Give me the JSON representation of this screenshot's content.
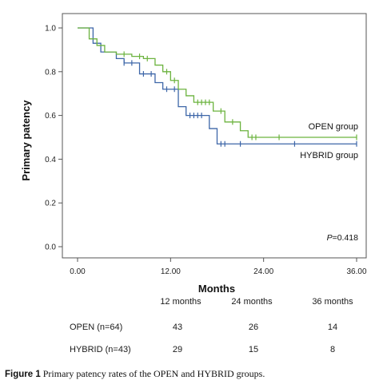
{
  "chart_data": {
    "type": "line",
    "ylabel": "Primary patency",
    "xlabel": "Months",
    "xlim": [
      0,
      36
    ],
    "ylim": [
      0,
      1
    ],
    "x_ticks": [
      "0.00",
      "12.00",
      "24.00",
      "36.00"
    ],
    "y_ticks": [
      "0.0",
      "0.2",
      "0.4",
      "0.6",
      "0.8",
      "1.0"
    ],
    "grid": false,
    "annotation": {
      "italic": "P",
      "rest": "=0.418"
    },
    "series": [
      {
        "name": "OPEN group",
        "color": "#6cb33f",
        "steps": [
          [
            0,
            1.0
          ],
          [
            1.5,
            0.95
          ],
          [
            2.5,
            0.92
          ],
          [
            3.5,
            0.89
          ],
          [
            5,
            0.88
          ],
          [
            7,
            0.87
          ],
          [
            8.5,
            0.86
          ],
          [
            10,
            0.83
          ],
          [
            11,
            0.8
          ],
          [
            12,
            0.76
          ],
          [
            13,
            0.72
          ],
          [
            14,
            0.69
          ],
          [
            15,
            0.66
          ],
          [
            17.5,
            0.62
          ],
          [
            19,
            0.57
          ],
          [
            21,
            0.53
          ],
          [
            22,
            0.5
          ],
          [
            36,
            0.5
          ]
        ],
        "censored": [
          [
            6,
            0.88
          ],
          [
            8,
            0.87
          ],
          [
            9,
            0.86
          ],
          [
            11.5,
            0.8
          ],
          [
            12.5,
            0.76
          ],
          [
            15.5,
            0.66
          ],
          [
            16,
            0.66
          ],
          [
            16.5,
            0.66
          ],
          [
            17,
            0.66
          ],
          [
            18.5,
            0.62
          ],
          [
            20,
            0.57
          ],
          [
            22.5,
            0.5
          ],
          [
            23,
            0.5
          ],
          [
            26,
            0.5
          ],
          [
            36,
            0.5
          ]
        ]
      },
      {
        "name": "HYBRID group",
        "color": "#3d66a8",
        "steps": [
          [
            0,
            1.0
          ],
          [
            2,
            0.93
          ],
          [
            3,
            0.89
          ],
          [
            5,
            0.86
          ],
          [
            6,
            0.84
          ],
          [
            8,
            0.79
          ],
          [
            10,
            0.75
          ],
          [
            11,
            0.72
          ],
          [
            13,
            0.64
          ],
          [
            14,
            0.6
          ],
          [
            17,
            0.54
          ],
          [
            18,
            0.47
          ],
          [
            36,
            0.47
          ]
        ],
        "censored": [
          [
            6,
            0.84
          ],
          [
            7,
            0.84
          ],
          [
            8.5,
            0.79
          ],
          [
            9.5,
            0.79
          ],
          [
            11.5,
            0.72
          ],
          [
            12.5,
            0.72
          ],
          [
            14.5,
            0.6
          ],
          [
            15,
            0.6
          ],
          [
            15.5,
            0.6
          ],
          [
            16,
            0.6
          ],
          [
            18.5,
            0.47
          ],
          [
            19,
            0.47
          ],
          [
            21,
            0.47
          ],
          [
            28,
            0.47
          ],
          [
            36,
            0.47
          ]
        ]
      }
    ]
  },
  "risk_table": {
    "headers": [
      "12 months",
      "24 months",
      "36 months"
    ],
    "rows": [
      {
        "label": "OPEN (n=64)",
        "values": [
          "43",
          "26",
          "14"
        ]
      },
      {
        "label": "HYBRID (n=43)",
        "values": [
          "29",
          "15",
          "8"
        ]
      }
    ]
  },
  "caption": {
    "figure": "Figure 1",
    "text": "Primary patency rates of the OPEN and HYBRID groups."
  }
}
